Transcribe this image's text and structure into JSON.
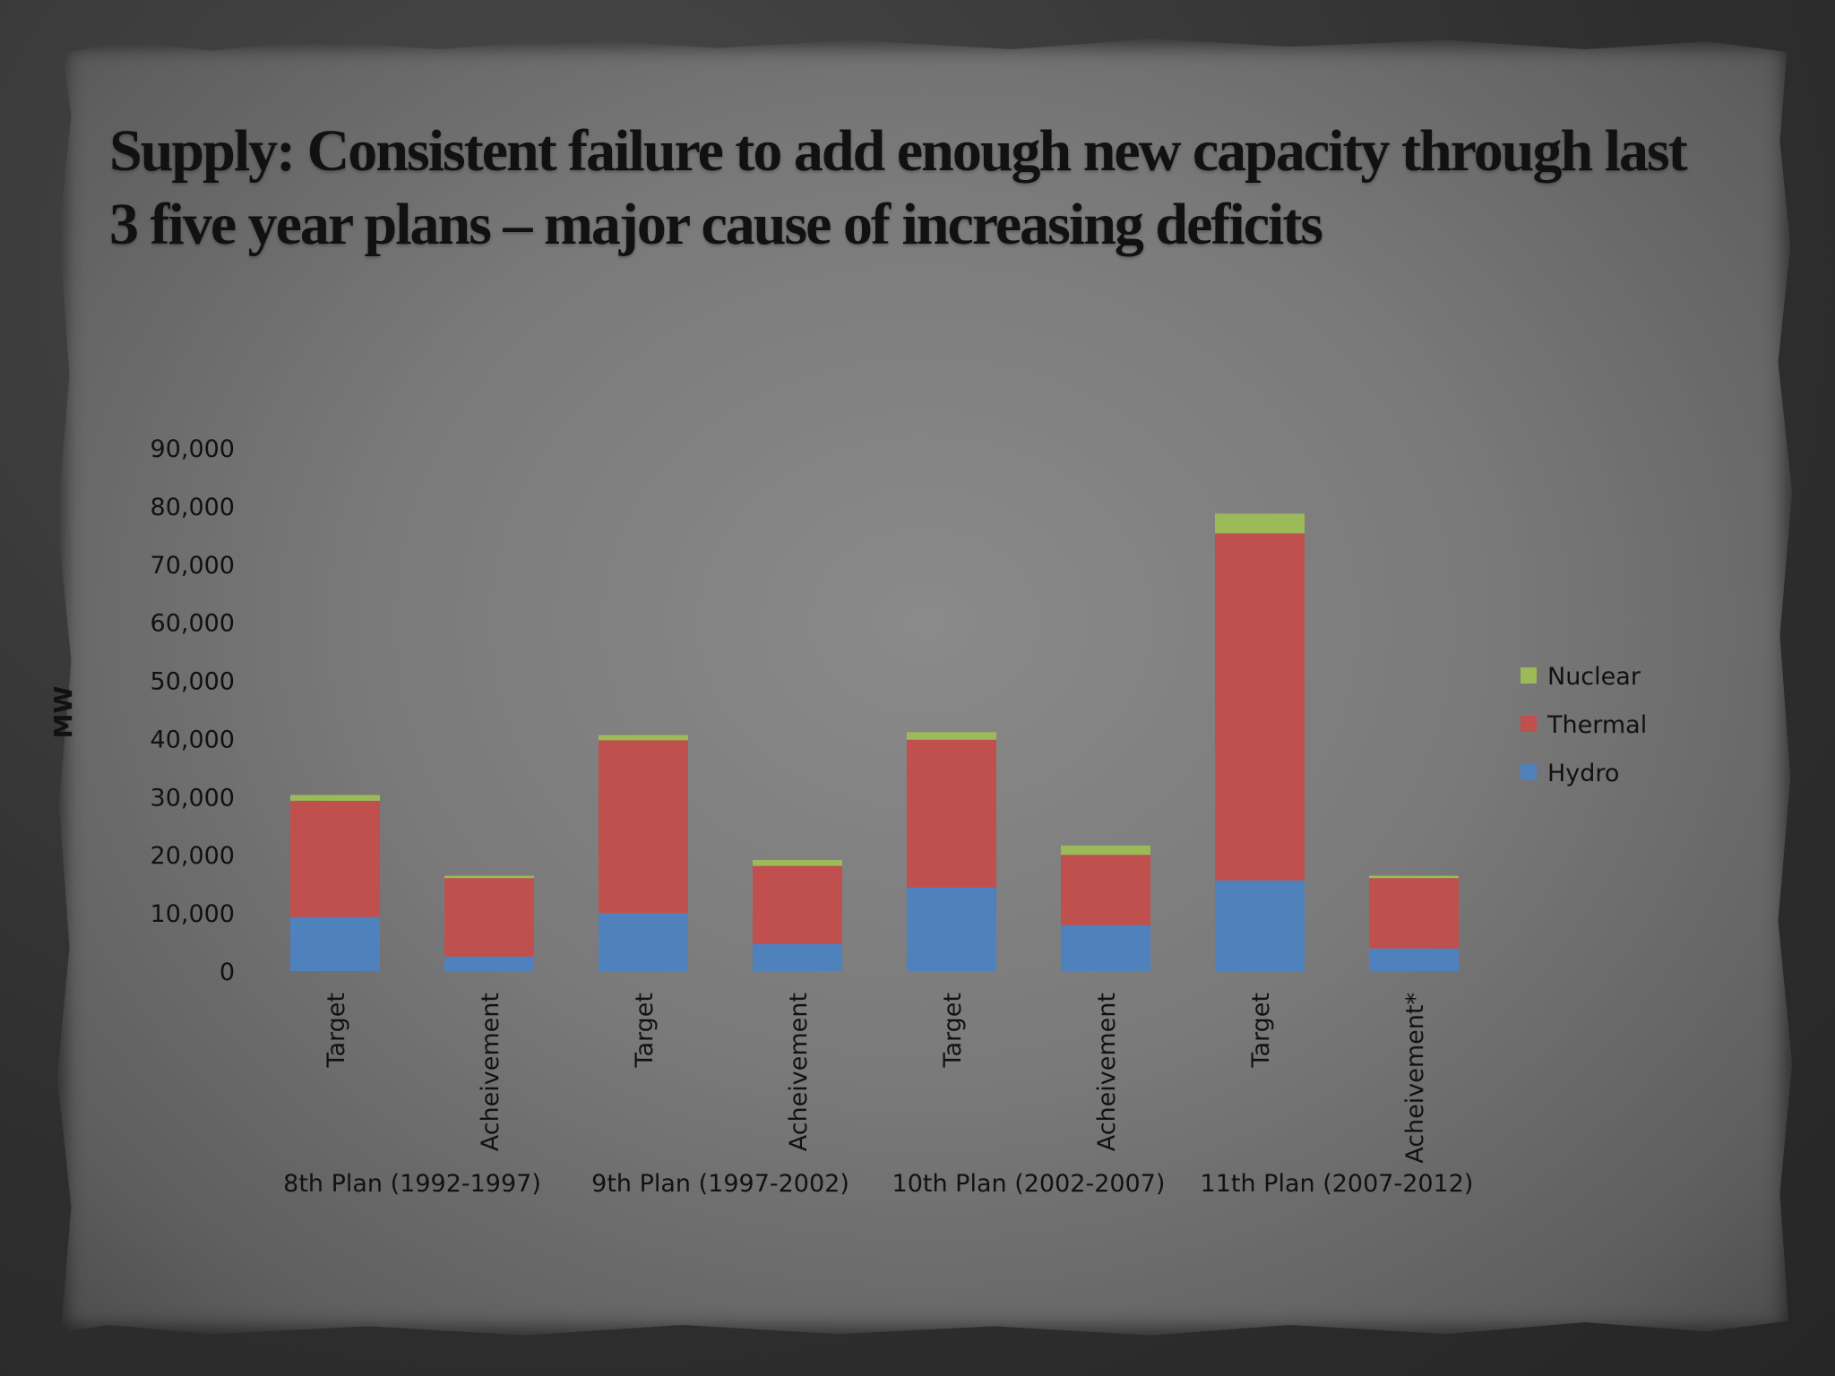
{
  "slide": {
    "title": "Supply: Consistent failure to add enough new capacity through last 3 five year plans – major cause of increasing deficits"
  },
  "chart_data": {
    "type": "bar",
    "stacked": true,
    "ylabel": "MW",
    "ylim": [
      0,
      90000
    ],
    "yticks": [
      "0",
      "10,000",
      "20,000",
      "30,000",
      "40,000",
      "50,000",
      "60,000",
      "70,000",
      "80,000",
      "90,000"
    ],
    "ytick_values": [
      0,
      10000,
      20000,
      30000,
      40000,
      50000,
      60000,
      70000,
      80000,
      90000
    ],
    "categories": [
      "Target",
      "Acheivement",
      "Target",
      "Acheivement",
      "Target",
      "Acheivement",
      "Target",
      "Acheivement*"
    ],
    "groups": [
      "8th Plan (1992-1997)",
      "9th Plan (1997-2002)",
      "10th Plan (2002-2007)",
      "11th Plan (2007-2012)"
    ],
    "legend_position": "right",
    "series": [
      {
        "name": "Hydro",
        "color": "#4f81bd",
        "values": [
          9300,
          2500,
          10000,
          4700,
          14400,
          7900,
          15600,
          3900
        ]
      },
      {
        "name": "Thermal",
        "color": "#c0504d",
        "values": [
          20000,
          13500,
          29700,
          13400,
          25400,
          12100,
          59700,
          12100
        ]
      },
      {
        "name": "Nuclear",
        "color": "#9bbb59",
        "values": [
          1000,
          400,
          900,
          1000,
          1300,
          1600,
          3400,
          400
        ]
      }
    ],
    "legend_order": [
      "Nuclear",
      "Thermal",
      "Hydro"
    ]
  }
}
